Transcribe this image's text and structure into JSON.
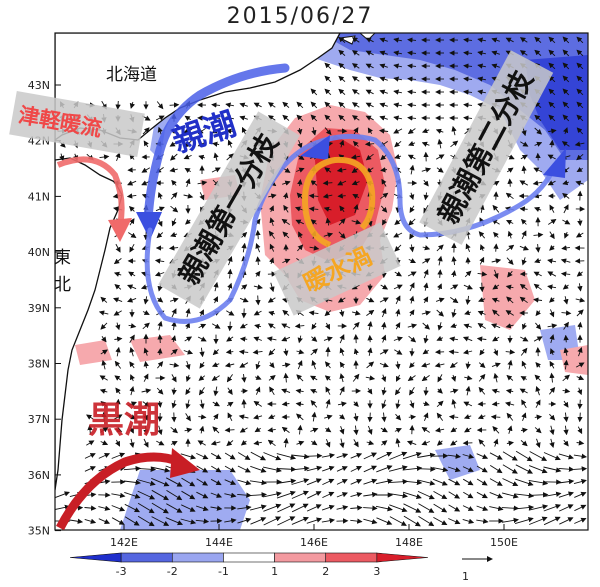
{
  "title": "2015/06/27",
  "map": {
    "lat_ticks": [
      "43N",
      "42N",
      "41N",
      "40N",
      "39N",
      "38N",
      "37N",
      "36N",
      "35N"
    ],
    "lon_ticks": [
      "142E",
      "144E",
      "146E",
      "148E",
      "150E"
    ],
    "place_labels": {
      "hokkaido": "北海道",
      "tohoku_1": "東",
      "tohoku_2": "北"
    },
    "current_labels": {
      "oyashio": "親潮",
      "tsugaru": "津軽暖流",
      "kuroshio": "黒潮",
      "branch1": "親潮第一分枝",
      "branch2": "親潮第二分枝",
      "eddy": "暖水渦"
    }
  },
  "colorbar": {
    "tick_labels": [
      "-3",
      "-2",
      "-1",
      "1",
      "2",
      "3"
    ],
    "reference_vector_label": "1",
    "colors": [
      "#1f2fcc",
      "#5566e0",
      "#9aa6f0",
      "#ffffff",
      "#f39aa0",
      "#ec5a62",
      "#d81e2a"
    ]
  },
  "colors": {
    "land": "#ffffff",
    "sea": "#ffffff",
    "warm_strong": "#e8353f",
    "warm_weak": "#f6a9ad",
    "cold_strong": "#3b4fe0",
    "cold_weak": "#8e9cf0",
    "oyashio_arrow": "#4a5fe8",
    "kuroshio_arrow": "#c81e25",
    "eddy_ring": "#f5a623",
    "label_box": "#c9c9c9"
  }
}
